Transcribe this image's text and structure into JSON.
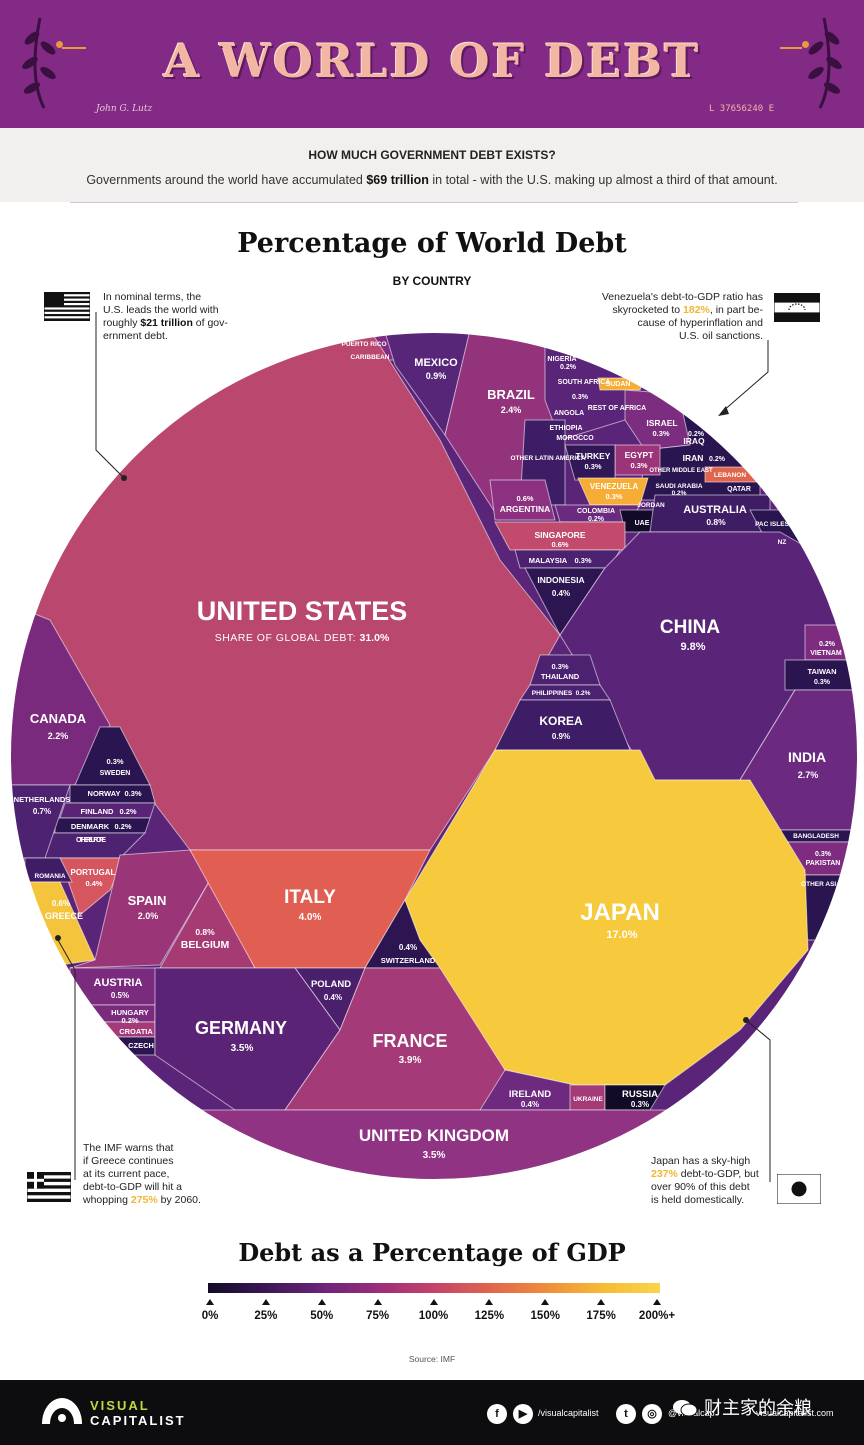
{
  "banner": {
    "title": "A WORLD OF DEBT",
    "signature": "John G. Lutz",
    "serial": "L 37656240 E"
  },
  "intro": {
    "heading": "HOW MUCH GOVERNMENT DEBT EXISTS?",
    "text_before": "Governments around the world have accumulated ",
    "text_bold": "$69 trillion",
    "text_after": " in total - with the U.S. making up almost a third of that amount."
  },
  "notes": {
    "us": {
      "line1": "In nominal terms, the",
      "line2": "U.S. leads the world with",
      "line3_pre": "roughly ",
      "line3_bold": "$21 trillion",
      "line3_post": " of gov-",
      "line4": "ernment debt."
    },
    "venezuela": {
      "line1": "Venezuela's debt-to-GDP ratio has",
      "line2_pre": "skyrocketed to ",
      "line2_hl": "182%",
      "line2_post": ", in part be-",
      "line3": "cause of hyperinflation and",
      "line4": "U.S. oil sanctions."
    },
    "greece": {
      "line1": "The IMF warns that",
      "line2": "if Greece continues",
      "line3": "at its current pace,",
      "line4": "debt-to-GDP will hit a",
      "line5_pre": "whopping ",
      "line5_hl": "275%",
      "line5_post": " by 2060."
    },
    "japan": {
      "line1": "Japan has a sky-high",
      "line2_hl": "237%",
      "line2_post": " debt-to-GDP, but",
      "line3": "over 90% of this debt",
      "line4": "is held domestically."
    }
  },
  "chart_data": {
    "type": "voronoi-treemap",
    "title": "Percentage of World Debt",
    "subtitle": "BY COUNTRY",
    "us_sublabel_pre": "SHARE OF GLOBAL DEBT: ",
    "cells": [
      {
        "name": "UNITED STATES",
        "share": "31.0%",
        "color": "#b9476e"
      },
      {
        "name": "JAPAN",
        "share": "17.0%",
        "color": "#f7c93c"
      },
      {
        "name": "CHINA",
        "share": "9.8%",
        "color": "#5a2478"
      },
      {
        "name": "ITALY",
        "share": "4.0%",
        "color": "#e15f52"
      },
      {
        "name": "FRANCE",
        "share": "3.9%",
        "color": "#a53a78"
      },
      {
        "name": "GERMANY",
        "share": "3.5%",
        "color": "#5b2376"
      },
      {
        "name": "UNITED KINGDOM",
        "share": "3.5%",
        "color": "#8f3382"
      },
      {
        "name": "INDIA",
        "share": "2.7%",
        "color": "#6b2a80"
      },
      {
        "name": "BRAZIL",
        "share": "2.4%",
        "color": "#93337c"
      },
      {
        "name": "CANADA",
        "share": "2.2%",
        "color": "#7a2a7c"
      },
      {
        "name": "SPAIN",
        "share": "2.0%",
        "color": "#9a3577"
      },
      {
        "name": "MEXICO",
        "share": "0.9%",
        "color": "#582678"
      },
      {
        "name": "KOREA",
        "share": "0.9%",
        "color": "#3e1c66"
      },
      {
        "name": "AUSTRALIA",
        "share": "0.8%",
        "color": "#3f1d64"
      },
      {
        "name": "BELGIUM",
        "share": "0.8%",
        "color": "#a63b73"
      },
      {
        "name": "NETHERLANDS",
        "share": "0.7%",
        "color": "#4d2271"
      },
      {
        "name": "SINGAPORE",
        "share": "0.6%",
        "color": "#c24a6c"
      },
      {
        "name": "ARGENTINA",
        "share": "0.6%",
        "color": "#8b3180"
      },
      {
        "name": "GREECE",
        "share": "0.6%",
        "color": "#f4c53c"
      },
      {
        "name": "AUSTRIA",
        "share": "0.5%",
        "color": "#7a2b7e"
      },
      {
        "name": "POLAND",
        "share": "0.4%",
        "color": "#4a1f6c"
      },
      {
        "name": "SWITZERLAND",
        "share": "0.4%",
        "color": "#2c1550"
      },
      {
        "name": "INDONESIA",
        "share": "0.4%",
        "color": "#2c1550"
      },
      {
        "name": "PORTUGAL",
        "share": "0.4%",
        "color": "#d65660"
      },
      {
        "name": "IRELAND",
        "share": "0.4%",
        "color": "#6d2a7e"
      },
      {
        "name": "TURKEY",
        "share": "0.3%",
        "color": "#311755"
      },
      {
        "name": "EGYPT",
        "share": "0.3%",
        "color": "#9b3479"
      },
      {
        "name": "VENEZUELA",
        "share": "0.3%",
        "color": "#f5ad35"
      },
      {
        "name": "ISRAEL",
        "share": "0.3%",
        "color": "#7c2d80"
      },
      {
        "name": "SOUTH AFRICA",
        "share": "0.3%",
        "color": "#3f1d66"
      },
      {
        "name": "MALAYSIA",
        "share": "0.3%",
        "color": "#4b2170"
      },
      {
        "name": "THAILAND",
        "share": "0.3%",
        "color": "#4b2170"
      },
      {
        "name": "SWEDEN",
        "share": "0.3%",
        "color": "#2b1550"
      },
      {
        "name": "NORWAY",
        "share": "0.3%",
        "color": "#2b1550"
      },
      {
        "name": "TAIWAN",
        "share": "0.3%",
        "color": "#2b1550"
      },
      {
        "name": "PAKISTAN",
        "share": "0.3%",
        "color": "#7e2c80"
      },
      {
        "name": "RUSSIA",
        "share": "0.3%",
        "color": "#120b28"
      },
      {
        "name": "NIGERIA",
        "share": "0.2%",
        "color": "#2a1550"
      },
      {
        "name": "IRAQ",
        "share": "0.2%",
        "color": "#6a2a7e"
      },
      {
        "name": "IRAN",
        "share": "0.2%",
        "color": "#2a1550"
      },
      {
        "name": "COLOMBIA",
        "share": "0.2%",
        "color": "#6a2a7e"
      },
      {
        "name": "SAUDI ARABIA",
        "share": "0.2%",
        "color": "#1d0f3a"
      },
      {
        "name": "PHILIPPINES",
        "share": "0.2%",
        "color": "#4b2170"
      },
      {
        "name": "VIETNAM",
        "share": "0.2%",
        "color": "#7e2c80"
      },
      {
        "name": "FINLAND",
        "share": "0.2%",
        "color": "#5a2476"
      },
      {
        "name": "DENMARK",
        "share": "0.2%",
        "color": "#2b1550"
      },
      {
        "name": "HUNGARY",
        "share": "0.2%",
        "color": "#7a2b7e"
      }
    ],
    "small_labels": [
      "PUERTO RICO",
      "CARIBBEAN",
      "SUDAN",
      "REST OF AFRICA",
      "ANGOLA",
      "ETHIOPIA",
      "MOROCCO",
      "OTHER LATIN AMERICA",
      "OTHER MIDDLE EAST",
      "LEBANON",
      "QATAR",
      "JORDAN",
      "UAE",
      "PAC ISLES",
      "NZ",
      "BANGLADESH",
      "OTHER ASIA",
      "UKRAINE",
      "CZECH",
      "CROATIA",
      "ROMANIA",
      "OTHER EUROPE"
    ],
    "legend": {
      "title": "Debt as a Percentage of GDP",
      "ticks": [
        "0%",
        "25%",
        "50%",
        "75%",
        "100%",
        "125%",
        "150%",
        "175%",
        "200%+"
      ],
      "range": [
        0,
        200
      ]
    },
    "source": "Source: IMF"
  },
  "footer": {
    "brand_line1": "VISUAL",
    "brand_line2": "CAPITALIST",
    "handle1": "/visualcapitalist",
    "handle2": "@visualcap",
    "handle3": "visualcapitalist.com",
    "wechat": "财主家的余粮"
  }
}
